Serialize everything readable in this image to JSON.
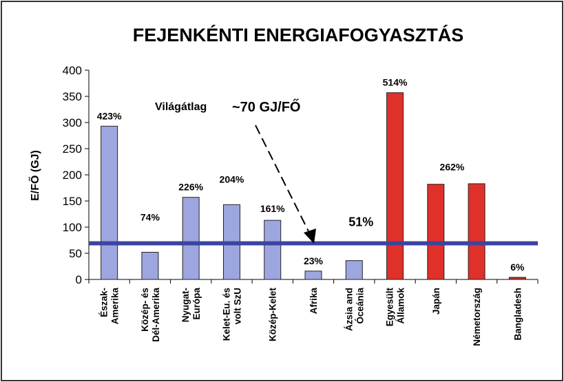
{
  "chart_data": {
    "type": "bar",
    "title": "FEJENKÉNTI ENERGIAFOGYASZTÁS",
    "ylabel": "E/FŐ (GJ)",
    "xlabel": "",
    "ylim": [
      0,
      400
    ],
    "yticks": [
      "0",
      "50",
      "100",
      "150",
      "200",
      "250",
      "300",
      "350",
      "400"
    ],
    "grid": false,
    "categories": [
      [
        "Észak-",
        "Amerika"
      ],
      [
        "Közép- és",
        "Dél-Amerika"
      ],
      [
        "Nyugat-",
        "Európa"
      ],
      [
        "Kelet-Eu. és",
        "volt SzU"
      ],
      [
        "Közép-Kelet"
      ],
      [
        "Afrika"
      ],
      [
        "Ázsia and",
        "Óceánia"
      ],
      [
        "Egyesült",
        "Államok"
      ],
      [
        "Japán"
      ],
      [
        "Németország"
      ],
      [
        "Bangladesh"
      ]
    ],
    "values": [
      293,
      52,
      157,
      143,
      113,
      16,
      36,
      357,
      182,
      183,
      4
    ],
    "bar_colors": [
      "#9ea6e0",
      "#9ea6e0",
      "#9ea6e0",
      "#9ea6e0",
      "#9ea6e0",
      "#9ea6e0",
      "#9ea6e0",
      "#e0302a",
      "#e0302a",
      "#e0302a",
      "#c0302a"
    ],
    "labels": [
      {
        "text": "423%",
        "bar": 0,
        "color": "#000000"
      },
      {
        "text": "74%",
        "bar": 1,
        "color": "#000000"
      },
      {
        "text": "226%",
        "bar": 2,
        "color": "#000000"
      },
      {
        "text": "204%",
        "bar": 3,
        "color": "#000000"
      },
      {
        "text": "161%",
        "bar": 4,
        "color": "#000000"
      },
      {
        "text": "23%",
        "bar": 5,
        "color": "#000000"
      },
      {
        "text": "51%",
        "bar": 6,
        "color": "#7b2d8e"
      },
      {
        "text": "514%",
        "bar": 7,
        "color": "#000000"
      },
      {
        "text": "262%",
        "bar": 8,
        "color": "#000000"
      },
      {
        "text": "6%",
        "bar": 10,
        "color": "#3a56a8"
      }
    ],
    "average_line": {
      "value": 69,
      "color": "#3a45a0"
    },
    "annotations": [
      {
        "text": "Világátlag"
      },
      {
        "text": "~70 GJ/FŐ"
      }
    ]
  }
}
